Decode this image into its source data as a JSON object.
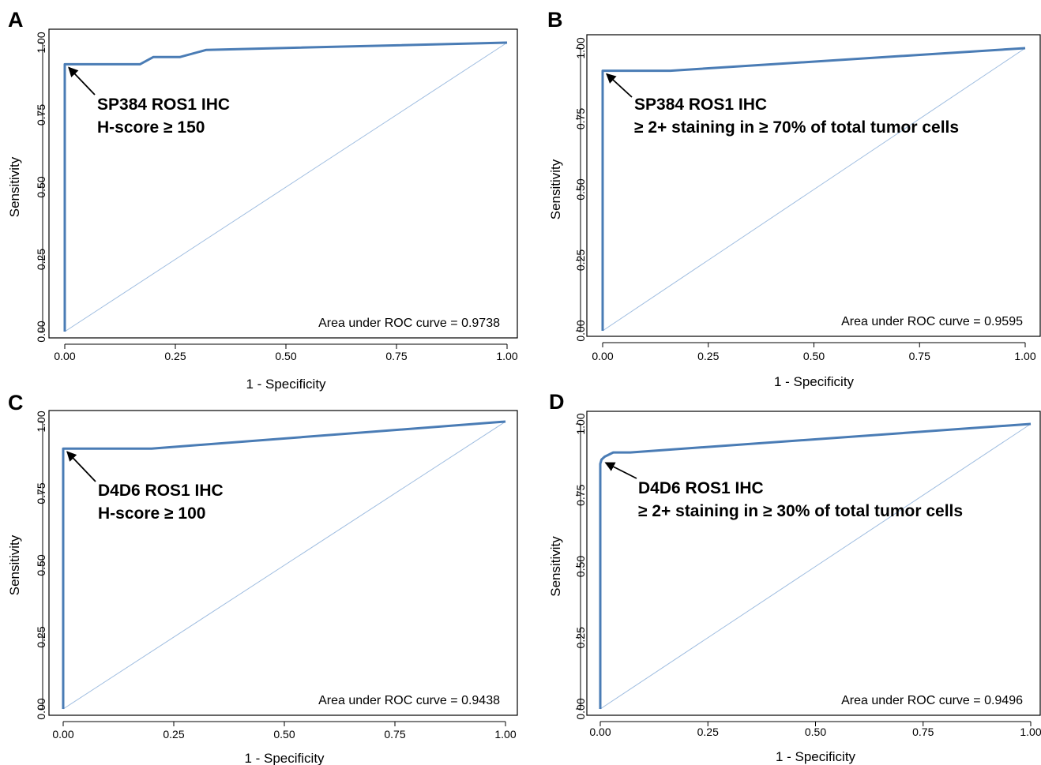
{
  "chart_data": [
    {
      "panel_label": "A",
      "type": "line",
      "xlabel": "1 - Specificity",
      "ylabel": "Sensitivity",
      "xlim": [
        0,
        1
      ],
      "ylim": [
        0,
        1
      ],
      "xticks": [
        "0.00",
        "0.25",
        "0.50",
        "0.75",
        "1.00"
      ],
      "yticks": [
        "0.00",
        "0.25",
        "0.50",
        "0.75",
        "1.00"
      ],
      "annotation_lines": [
        "SP384 ROS1 IHC",
        "H-score ≥ 150"
      ],
      "cutoff_point": [
        0.0,
        0.925
      ],
      "auc_label": "Area under ROC curve = 0.9738",
      "series": [
        {
          "x": [
            0,
            0,
            0.17,
            0.2,
            0.26,
            0.32,
            1.0
          ],
          "y": [
            0,
            0.925,
            0.925,
            0.95,
            0.95,
            0.975,
            1.0
          ]
        }
      ],
      "reference_line": {
        "x": [
          0,
          1
        ],
        "y": [
          0,
          1
        ]
      },
      "colors": {
        "curve": "#4a7cb5",
        "reference": "#9fbde0"
      }
    },
    {
      "panel_label": "B",
      "type": "line",
      "xlabel": "1 - Specificity",
      "ylabel": "Sensitivity",
      "xlim": [
        0,
        1
      ],
      "ylim": [
        0,
        1
      ],
      "xticks": [
        "0.00",
        "0.25",
        "0.50",
        "0.75",
        "1.00"
      ],
      "yticks": [
        "0.00",
        "0.25",
        "0.50",
        "0.75",
        "1.00"
      ],
      "annotation_lines": [
        "SP384 ROS1 IHC",
        "≥ 2+ staining in ≥ 70% of total tumor cells"
      ],
      "cutoff_point": [
        0.0,
        0.92
      ],
      "auc_label": "Area under ROC curve = 0.9595",
      "series": [
        {
          "x": [
            0,
            0,
            0.16,
            1.0
          ],
          "y": [
            0,
            0.92,
            0.92,
            1.0
          ]
        }
      ],
      "reference_line": {
        "x": [
          0,
          1
        ],
        "y": [
          0,
          1
        ]
      },
      "colors": {
        "curve": "#4a7cb5",
        "reference": "#9fbde0"
      }
    },
    {
      "panel_label": "C",
      "type": "line",
      "xlabel": "1 - Specificity",
      "ylabel": "Sensitivity",
      "xlim": [
        0,
        1
      ],
      "ylim": [
        0,
        1
      ],
      "xticks": [
        "0.00",
        "0.25",
        "0.50",
        "0.75",
        "1.00"
      ],
      "yticks": [
        "0.00",
        "0.25",
        "0.50",
        "0.75",
        "1.00"
      ],
      "annotation_lines": [
        "D4D6 ROS1 IHC",
        "H-score ≥ 100"
      ],
      "cutoff_point": [
        0.0,
        0.906
      ],
      "auc_label": "Area under ROC curve = 0.9438",
      "series": [
        {
          "x": [
            0,
            0,
            0.2,
            1.0
          ],
          "y": [
            0,
            0.906,
            0.906,
            1.0
          ]
        }
      ],
      "reference_line": {
        "x": [
          0,
          1
        ],
        "y": [
          0,
          1
        ]
      },
      "colors": {
        "curve": "#4a7cb5",
        "reference": "#9fbde0"
      }
    },
    {
      "panel_label": "D",
      "type": "line",
      "xlabel": "1 - Specificity",
      "ylabel": "Sensitivity",
      "xlim": [
        0,
        1
      ],
      "ylim": [
        0,
        1
      ],
      "xticks": [
        "0.00",
        "0.25",
        "0.50",
        "0.75",
        "1.00"
      ],
      "yticks": [
        "0.00",
        "0.25",
        "0.50",
        "0.75",
        "1.00"
      ],
      "annotation_lines": [
        "D4D6 ROS1 IHC",
        "≥ 2+ staining in ≥ 30% of total tumor cells"
      ],
      "cutoff_point": [
        0.003,
        0.875
      ],
      "auc_label": "Area under ROC curve = 0.9496",
      "series": [
        {
          "x": [
            0,
            0,
            0.003,
            0.01,
            0.03,
            0.07,
            1.0
          ],
          "y": [
            0,
            0.86,
            0.875,
            0.885,
            0.9,
            0.9,
            1.0
          ]
        }
      ],
      "reference_line": {
        "x": [
          0,
          1
        ],
        "y": [
          0,
          1
        ]
      },
      "colors": {
        "curve": "#4a7cb5",
        "reference": "#9fbde0"
      }
    }
  ]
}
